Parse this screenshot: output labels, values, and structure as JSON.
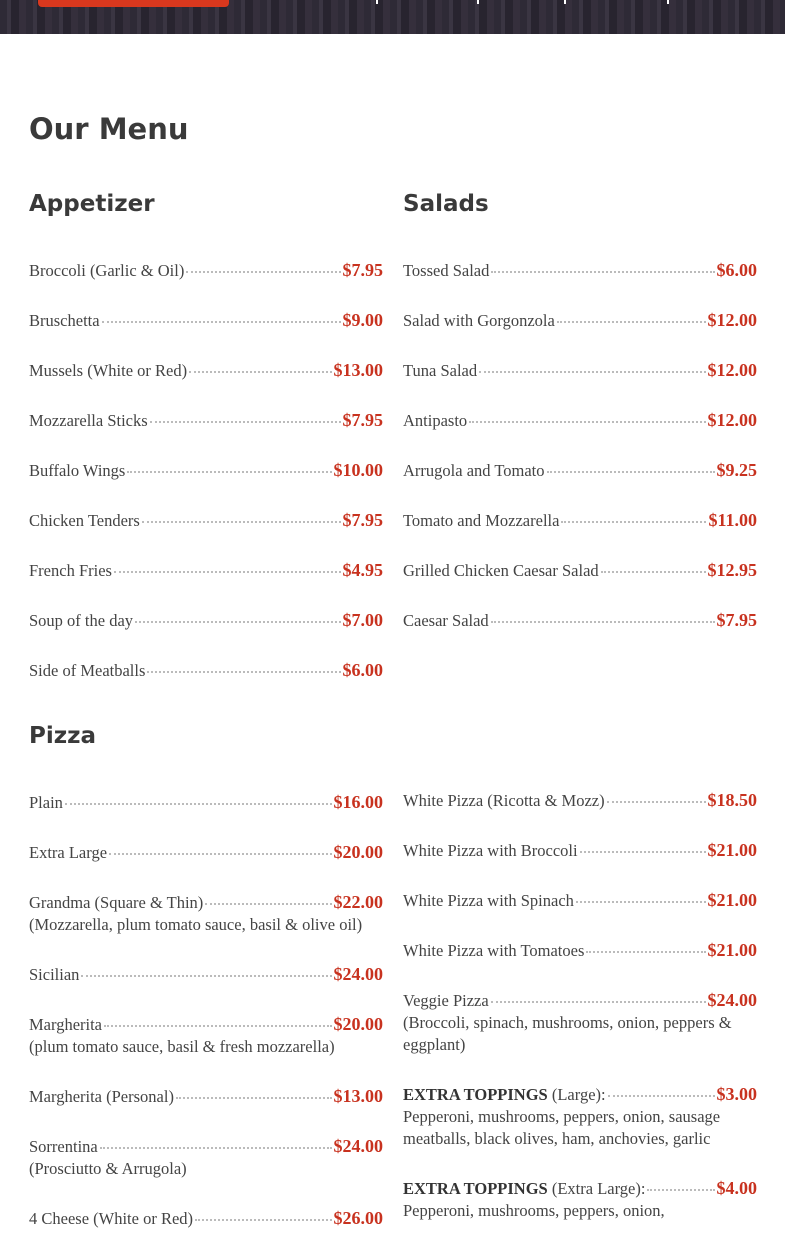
{
  "title": "Our Menu",
  "sections": [
    {
      "heading": "Appetizer",
      "items": [
        {
          "name": "Broccoli (Garlic & Oil)",
          "price": "$7.95"
        },
        {
          "name": "Bruschetta",
          "price": "$9.00"
        },
        {
          "name": "Mussels (White or Red)",
          "price": "$13.00"
        },
        {
          "name": "Mozzarella Sticks",
          "price": "$7.95"
        },
        {
          "name": "Buffalo Wings",
          "price": "$10.00"
        },
        {
          "name": "Chicken Tenders",
          "price": "$7.95"
        },
        {
          "name": "French Fries",
          "price": "$4.95"
        },
        {
          "name": "Soup of the day",
          "price": "$7.00"
        },
        {
          "name": "Side of Meatballs",
          "price": "$6.00"
        }
      ]
    },
    {
      "heading": "Salads",
      "items": [
        {
          "name": "Tossed Salad",
          "price": "$6.00"
        },
        {
          "name": "Salad with Gorgonzola",
          "price": "$12.00"
        },
        {
          "name": "Tuna Salad",
          "price": "$12.00"
        },
        {
          "name": "Antipasto",
          "price": "$12.00"
        },
        {
          "name": "Arrugola and Tomato",
          "price": "$9.25"
        },
        {
          "name": "Tomato and Mozzarella",
          "price": "$11.00"
        },
        {
          "name": "Grilled Chicken Caesar Salad",
          "price": "$12.95"
        },
        {
          "name": "Caesar Salad",
          "price": "$7.95"
        }
      ]
    },
    {
      "heading": "Pizza",
      "items": [
        {
          "name": "Plain",
          "price": "$16.00"
        },
        {
          "name": "Extra Large",
          "price": "$20.00"
        },
        {
          "name": "Grandma (Square & Thin)",
          "price": "$22.00",
          "desc": "(Mozzarella, plum tomato sauce, basil & olive oil)"
        },
        {
          "name": "Sicilian",
          "price": "$24.00"
        },
        {
          "name": "Margherita",
          "price": "$20.00",
          "desc": "(plum tomato sauce, basil & fresh mozzarella)"
        },
        {
          "name": "Margherita (Personal)",
          "price": "$13.00"
        },
        {
          "name": "Sorrentina",
          "price": "$24.00",
          "desc": "(Prosciutto & Arrugola)"
        },
        {
          "name": "4 Cheese (White or Red)",
          "price": "$26.00"
        }
      ]
    },
    {
      "heading": "",
      "items": [
        {
          "name": "White Pizza (Ricotta & Mozz)",
          "price": "$18.50"
        },
        {
          "name": "White Pizza with Broccoli",
          "price": "$21.00"
        },
        {
          "name": "White Pizza with Spinach",
          "price": "$21.00"
        },
        {
          "name": "White Pizza with Tomatoes",
          "price": "$21.00"
        },
        {
          "name": "Veggie Pizza",
          "price": "$24.00",
          "desc": "(Broccoli, spinach, mushrooms, onion, peppers & eggplant)"
        },
        {
          "bold": "EXTRA TOPPINGS",
          "name": " (Large):",
          "price": "$3.00",
          "desc": "Pepperoni, mushrooms, peppers, onion, sausage meatballs, black olives, ham, anchovies, garlic"
        },
        {
          "bold": "EXTRA TOPPINGS",
          "name": " (Extra Large):",
          "price": "$4.00",
          "desc": "Pepperoni, mushrooms, peppers, onion,"
        }
      ]
    }
  ]
}
